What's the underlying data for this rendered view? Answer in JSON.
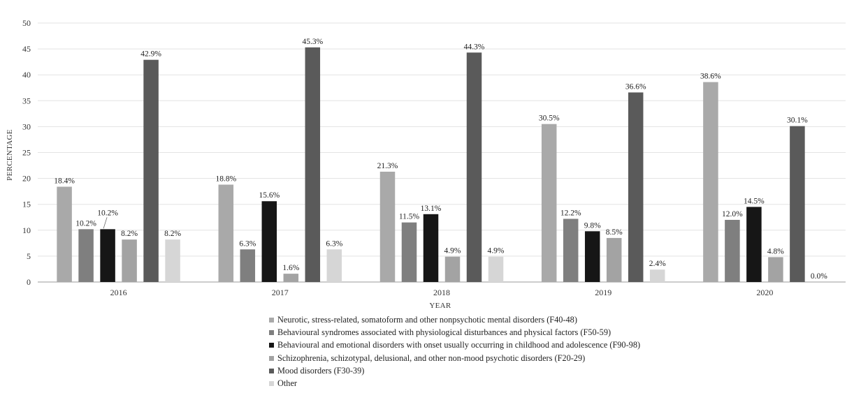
{
  "chart_data": {
    "type": "bar",
    "title": "",
    "xlabel": "YEAR",
    "ylabel": "PERCENTAGE",
    "ylim": [
      0,
      50
    ],
    "yticks": [
      "0",
      "5",
      "10",
      "15",
      "20",
      "25",
      "30",
      "35",
      "40",
      "45",
      "50"
    ],
    "categories": [
      "2016",
      "2017",
      "2018",
      "2019",
      "2020"
    ],
    "grid": true,
    "legend_position": "bottom",
    "series": [
      {
        "name": "Neurotic, stress-related, somatoform and other nonpsychotic mental disorders (F40-48)",
        "color": "#a9a9a9",
        "values": [
          18.4,
          18.8,
          21.3,
          30.5,
          38.6
        ],
        "labels": [
          "18.4%",
          "18.8%",
          "21.3%",
          "30.5%",
          "38.6%"
        ]
      },
      {
        "name": "Behavioural syndromes associated with physiological disturbances and physical factors (F50-59)",
        "color": "#7f7f7f",
        "values": [
          10.2,
          6.3,
          11.5,
          12.2,
          12.0
        ],
        "labels": [
          "10.2%",
          "6.3%",
          "11.5%",
          "12.2%",
          "12.0%"
        ]
      },
      {
        "name": "Behavioural and emotional disorders with onset usually occurring in childhood and adolescence (F90-98)",
        "color": "#161616",
        "values": [
          10.2,
          15.6,
          13.1,
          9.8,
          14.5
        ],
        "labels": [
          "10.2%",
          "15.6%",
          "13.1%",
          "9.8%",
          "14.5%"
        ]
      },
      {
        "name": "Schizophrenia, schizotypal, delusional, and other non-mood psychotic disorders (F20-29)",
        "color": "#a3a3a3",
        "values": [
          8.2,
          1.6,
          4.9,
          8.5,
          4.8
        ],
        "labels": [
          "8.2%",
          "1.6%",
          "4.9%",
          "8.5%",
          "4.8%"
        ]
      },
      {
        "name": "Mood disorders (F30-39)",
        "color": "#5a5a5a",
        "values": [
          42.9,
          45.3,
          44.3,
          36.6,
          30.1
        ],
        "labels": [
          "42.9%",
          "45.3%",
          "44.3%",
          "36.6%",
          "30.1%"
        ]
      },
      {
        "name": "Other",
        "color": "#d6d6d6",
        "values": [
          8.2,
          6.3,
          4.9,
          2.4,
          0.0
        ],
        "labels": [
          "8.2%",
          "6.3%",
          "4.9%",
          "2.4%",
          "0.0%"
        ]
      }
    ]
  }
}
